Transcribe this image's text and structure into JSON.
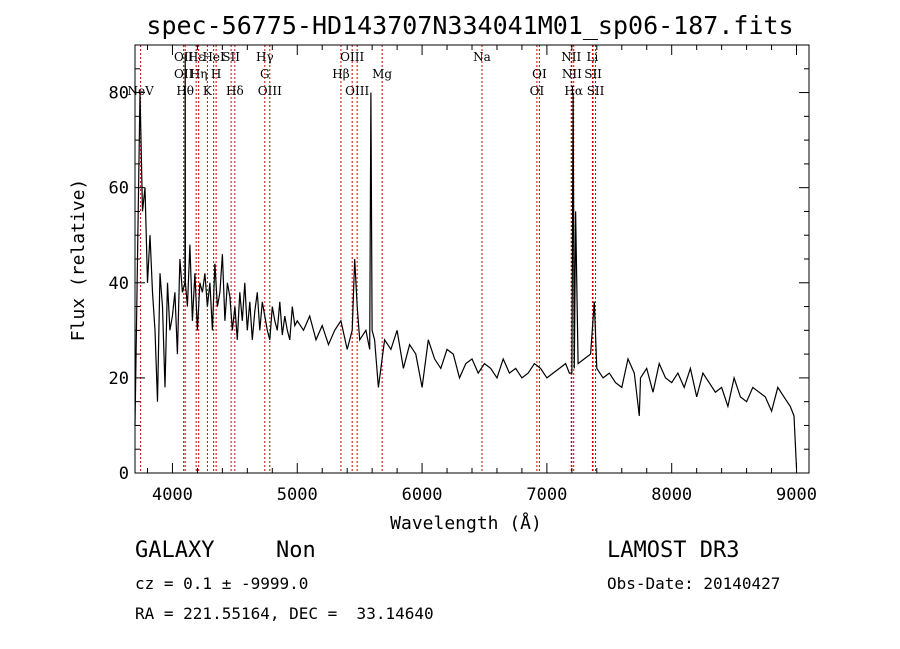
{
  "chart_data": {
    "type": "line",
    "title": "spec-56775-HD143707N334041M01_sp06-187.fits",
    "xlabel": "Wavelength (Å)",
    "ylabel": "Flux (relative)",
    "xlim": [
      3700,
      9100
    ],
    "ylim": [
      0,
      90
    ],
    "xticks": [
      4000,
      5000,
      6000,
      7000,
      8000,
      9000
    ],
    "yticks": [
      0,
      20,
      40,
      60,
      80
    ],
    "grid": false,
    "series": [
      {
        "x": [
          3700,
          3720,
          3740,
          3760,
          3780,
          3800,
          3820,
          3840,
          3860,
          3880,
          3900,
          3920,
          3940,
          3960,
          3980,
          4000,
          4020,
          4040,
          4060,
          4080,
          4100,
          4102,
          4104,
          4120,
          4140,
          4160,
          4180,
          4200,
          4220,
          4240,
          4260,
          4280,
          4300,
          4320,
          4340,
          4360,
          4380,
          4400,
          4420,
          4440,
          4460,
          4480,
          4500,
          4520,
          4540,
          4560,
          4580,
          4600,
          4620,
          4640,
          4660,
          4680,
          4700,
          4720,
          4740,
          4760,
          4780,
          4800,
          4820,
          4840,
          4860,
          4880,
          4900,
          4920,
          4940,
          4960,
          4980,
          5000,
          5050,
          5100,
          5150,
          5200,
          5250,
          5300,
          5350,
          5400,
          5440,
          5460,
          5480,
          5500,
          5550,
          5580,
          5590,
          5600,
          5620,
          5650,
          5700,
          5750,
          5800,
          5850,
          5900,
          5950,
          6000,
          6050,
          6100,
          6150,
          6200,
          6250,
          6300,
          6350,
          6400,
          6450,
          6500,
          6550,
          6600,
          6650,
          6700,
          6750,
          6800,
          6850,
          6900,
          6950,
          7000,
          7050,
          7100,
          7150,
          7180,
          7200,
          7210,
          7220,
          7230,
          7250,
          7300,
          7350,
          7380,
          7400,
          7450,
          7500,
          7550,
          7600,
          7650,
          7700,
          7740,
          7750,
          7800,
          7850,
          7900,
          7950,
          8000,
          8050,
          8100,
          8150,
          8200,
          8250,
          8300,
          8350,
          8400,
          8450,
          8500,
          8550,
          8600,
          8650,
          8700,
          8750,
          8800,
          8850,
          8900,
          8950,
          8980,
          9000
        ],
        "y": [
          10,
          45,
          80,
          55,
          60,
          40,
          50,
          38,
          30,
          15,
          42,
          35,
          18,
          40,
          30,
          33,
          38,
          25,
          45,
          38,
          40,
          88,
          40,
          35,
          48,
          32,
          42,
          30,
          40,
          38,
          42,
          35,
          40,
          30,
          44,
          35,
          38,
          46,
          32,
          40,
          37,
          30,
          35,
          28,
          38,
          32,
          40,
          30,
          36,
          28,
          34,
          38,
          30,
          36,
          33,
          30,
          28,
          35,
          32,
          30,
          36,
          29,
          33,
          30,
          28,
          35,
          31,
          32,
          30,
          33,
          28,
          31,
          27,
          30,
          32,
          26,
          30,
          45,
          35,
          28,
          30,
          26,
          80,
          30,
          28,
          18,
          28,
          26,
          30,
          22,
          27,
          25,
          18,
          28,
          24,
          22,
          26,
          25,
          20,
          23,
          24,
          21,
          23,
          22,
          20,
          24,
          21,
          22,
          20,
          21,
          23,
          22,
          20,
          21,
          22,
          23,
          21,
          21,
          80,
          22,
          55,
          23,
          24,
          25,
          36,
          22,
          20,
          21,
          19,
          18,
          24,
          21,
          12,
          20,
          22,
          17,
          23,
          20,
          19,
          21,
          18,
          22,
          16,
          21,
          19,
          17,
          18,
          14,
          20,
          16,
          15,
          18,
          17,
          16,
          13,
          18,
          16,
          14,
          12,
          1
        ]
      }
    ],
    "emission_lines": [
      {
        "label": "NeV",
        "x": 3745,
        "row": 3
      },
      {
        "label": "OII",
        "x": 4090,
        "row": 1
      },
      {
        "label": "OII",
        "x": 4090,
        "row": 2
      },
      {
        "label": "Hθ",
        "x": 4102,
        "row": 3
      },
      {
        "label": "Hε",
        "x": 4190,
        "row": 1
      },
      {
        "label": "Hη",
        "x": 4210,
        "row": 2
      },
      {
        "label": "K",
        "x": 4280,
        "row": 3
      },
      {
        "label": "HeI",
        "x": 4330,
        "row": 1
      },
      {
        "label": "H",
        "x": 4350,
        "row": 2
      },
      {
        "label": "SII",
        "x": 4470,
        "row": 1
      },
      {
        "label": "Hδ",
        "x": 4500,
        "row": 3
      },
      {
        "label": "Hγ",
        "x": 4740,
        "row": 1
      },
      {
        "label": "G",
        "x": 4740,
        "row": 2
      },
      {
        "label": "OIII",
        "x": 4780,
        "row": 3
      },
      {
        "label": "Hβ",
        "x": 5350,
        "row": 2
      },
      {
        "label": "OIII",
        "x": 5440,
        "row": 1
      },
      {
        "label": "OIII",
        "x": 5480,
        "row": 3
      },
      {
        "label": "Mg",
        "x": 5680,
        "row": 2
      },
      {
        "label": "Na",
        "x": 6480,
        "row": 1
      },
      {
        "label": "OI",
        "x": 6940,
        "row": 2
      },
      {
        "label": "OI",
        "x": 6920,
        "row": 3
      },
      {
        "label": "NII",
        "x": 7195,
        "row": 1
      },
      {
        "label": "NII",
        "x": 7200,
        "row": 2
      },
      {
        "label": "Hα",
        "x": 7215,
        "row": 3
      },
      {
        "label": "Li",
        "x": 7365,
        "row": 1
      },
      {
        "label": "SII",
        "x": 7370,
        "row": 2
      },
      {
        "label": "SII",
        "x": 7390,
        "row": 3
      }
    ],
    "line_color": "#000000",
    "marker_color": "#cc0000"
  },
  "info": {
    "object_class": "GALAXY",
    "subclass": "Non",
    "survey": "LAMOST DR3",
    "cz": "cz = 0.1 ± -9999.0",
    "obs_date": "Obs-Date: 20140427",
    "coords": "RA = 221.55164, DEC =  33.14640"
  }
}
